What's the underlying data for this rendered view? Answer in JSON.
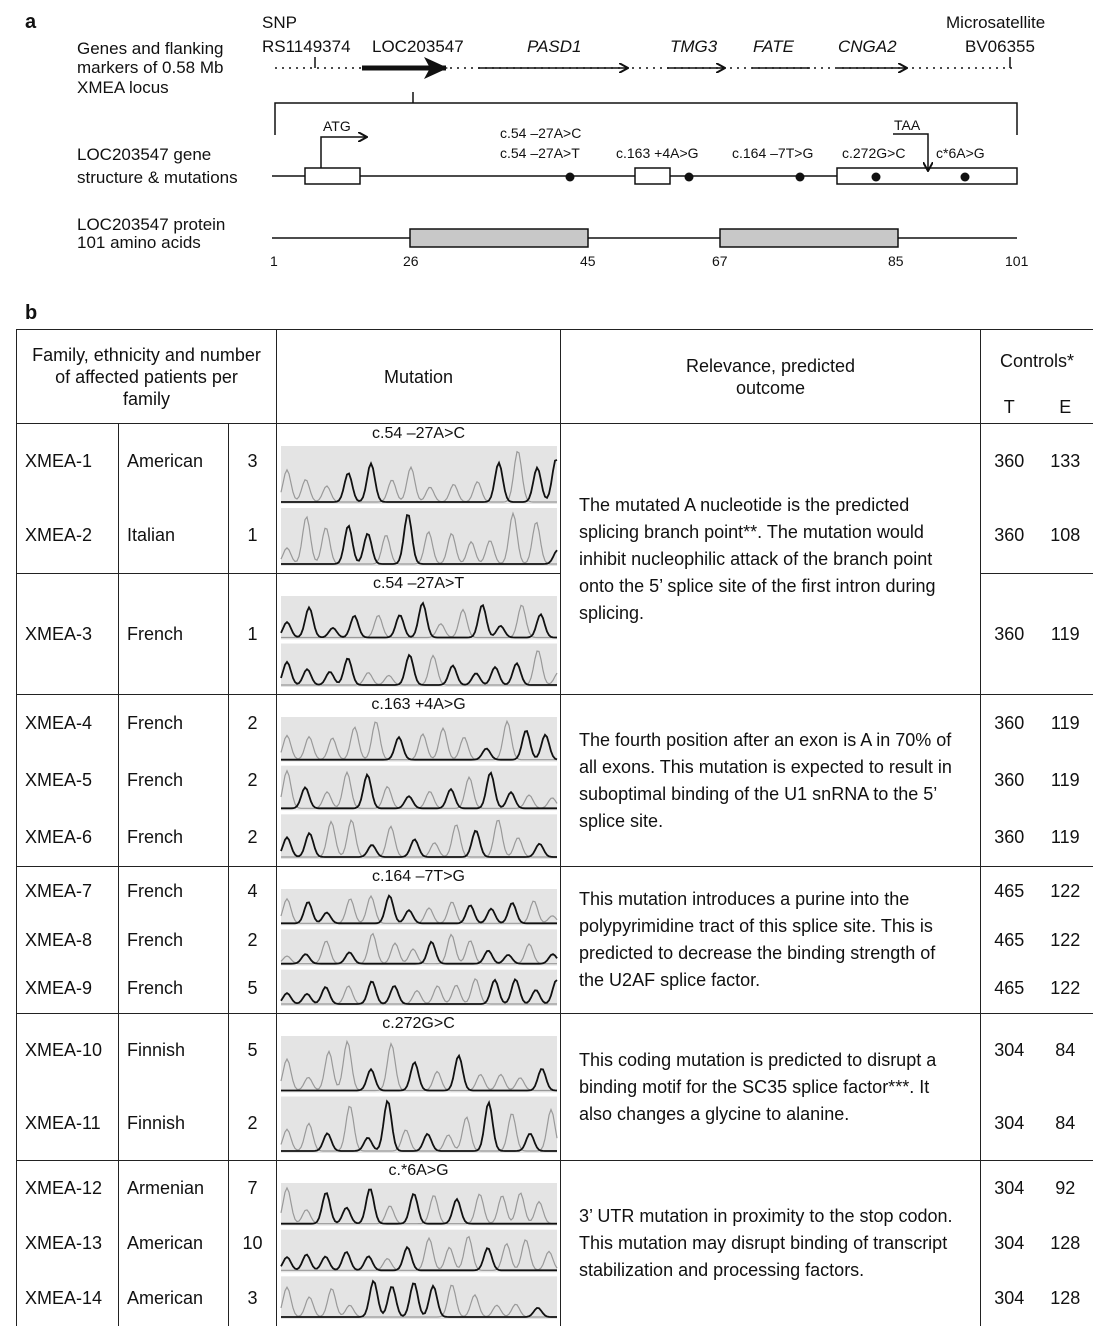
{
  "panel_a": {
    "label": "a",
    "locus": {
      "label_lines": [
        "Genes and flanking",
        "markers of 0.58 Mb",
        "XMEA locus"
      ],
      "snp_type": "SNP",
      "snp_id": "RS1149374",
      "microsatellite_type": "Microsatellite",
      "microsatellite_id": "BV06355",
      "genes": [
        "LOC203547",
        "PASD1",
        "TMG3",
        "FATE",
        "CNGA2"
      ]
    },
    "gene_structure": {
      "label_lines": [
        "LOC203547  gene",
        "structure & mutations"
      ],
      "start_codon": "ATG",
      "stop_codon": "TAA",
      "mutations": [
        "c.54 –27A>C",
        "c.54 –27A>T",
        "c.163 +4A>G",
        "c.164 –7T>G",
        "c.272G>C",
        "c*6A>G"
      ]
    },
    "protein": {
      "label_lines": [
        "LOC203547 protein",
        "101 amino acids"
      ],
      "positions": [
        1,
        26,
        45,
        67,
        85,
        101
      ]
    }
  },
  "panel_b": {
    "label": "b",
    "headers": {
      "family": "Family, ethnicity and number of affected patients per family",
      "mutation": "Mutation",
      "relevance": "Relevance, predicted outcome",
      "controls": "Controls*",
      "controls_t": "T",
      "controls_e": "E"
    },
    "groups": [
      {
        "relevance": "The mutated A nucleotide is the predicted splicing branch point**. The mutation would inhibit nucleophilic attack of the branch point onto the 5’ splice site of the first intron during splicing.",
        "mutations": [
          {
            "label": "c.54 –27A>C",
            "rows": [
              {
                "family": "XMEA-1",
                "ethnicity": "American",
                "affected": 3,
                "controls_t": 360,
                "controls_e": 133
              },
              {
                "family": "XMEA-2",
                "ethnicity": "Italian",
                "affected": 1,
                "controls_t": 360,
                "controls_e": 108
              }
            ]
          },
          {
            "label": "c.54 –27A>T",
            "rows": [
              {
                "family": "XMEA-3",
                "ethnicity": "French",
                "affected": 1,
                "controls_t": 360,
                "controls_e": 119
              }
            ]
          }
        ]
      },
      {
        "relevance": "The fourth position after an exon is A in 70% of all exons.  This mutation is expected to result in suboptimal binding of the U1 snRNA to the 5’ splice site.",
        "mutations": [
          {
            "label": "c.163 +4A>G",
            "rows": [
              {
                "family": "XMEA-4",
                "ethnicity": "French",
                "affected": 2,
                "controls_t": 360,
                "controls_e": 119
              },
              {
                "family": "XMEA-5",
                "ethnicity": "French",
                "affected": 2,
                "controls_t": 360,
                "controls_e": 119
              },
              {
                "family": "XMEA-6",
                "ethnicity": "French",
                "affected": 2,
                "controls_t": 360,
                "controls_e": 119
              }
            ]
          }
        ]
      },
      {
        "relevance": "This mutation introduces a purine into the polypyrimidine tract of this splice site. This is predicted to decrease the binding strength of the U2AF splice factor.",
        "mutations": [
          {
            "label": "c.164 –7T>G",
            "rows": [
              {
                "family": "XMEA-7",
                "ethnicity": "French",
                "affected": 4,
                "controls_t": 465,
                "controls_e": 122
              },
              {
                "family": "XMEA-8",
                "ethnicity": "French",
                "affected": 2,
                "controls_t": 465,
                "controls_e": 122
              },
              {
                "family": "XMEA-9",
                "ethnicity": "French",
                "affected": 5,
                "controls_t": 465,
                "controls_e": 122
              }
            ]
          }
        ]
      },
      {
        "relevance": "This coding mutation is predicted to disrupt a binding motif for the SC35 splice factor***.  It also changes a glycine to alanine.",
        "mutations": [
          {
            "label": "c.272G>C",
            "rows": [
              {
                "family": "XMEA-10",
                "ethnicity": "Finnish",
                "affected": 5,
                "controls_t": 304,
                "controls_e": 84
              },
              {
                "family": "XMEA-11",
                "ethnicity": "Finnish",
                "affected": 2,
                "controls_t": 304,
                "controls_e": 84
              }
            ]
          }
        ]
      },
      {
        "relevance": "3’ UTR mutation in proximity to the stop codon.  This mutation may disrupt binding of transcript stabilization and processing factors.",
        "mutations": [
          {
            "label": "c.*6A>G",
            "rows": [
              {
                "family": "XMEA-12",
                "ethnicity": "Armenian",
                "affected": 7,
                "controls_t": 304,
                "controls_e": 92
              },
              {
                "family": "XMEA-13",
                "ethnicity": "American",
                "affected": 10,
                "controls_t": 304,
                "controls_e": 128
              },
              {
                "family": "XMEA-14",
                "ethnicity": "American",
                "affected": 3,
                "controls_t": 304,
                "controls_e": 128
              }
            ]
          }
        ]
      }
    ]
  }
}
